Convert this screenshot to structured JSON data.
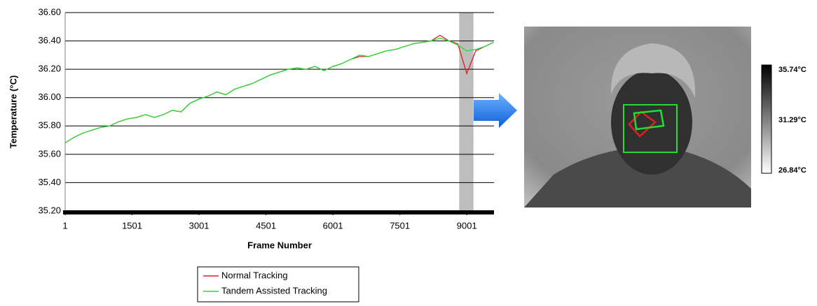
{
  "chart_data": {
    "type": "line",
    "y_label": "Temperature (°C)",
    "x_label": "Frame Number",
    "x": [
      1,
      200,
      400,
      600,
      800,
      1000,
      1200,
      1400,
      1600,
      1800,
      2000,
      2200,
      2400,
      2600,
      2800,
      3000,
      3200,
      3400,
      3600,
      3800,
      4000,
      4200,
      4400,
      4600,
      4800,
      5000,
      5200,
      5400,
      5600,
      5800,
      6000,
      6200,
      6400,
      6600,
      6800,
      7000,
      7200,
      7400,
      7600,
      7800,
      8000,
      8200,
      8400,
      8600,
      8800,
      9000,
      9200,
      9400,
      9600
    ],
    "series": [
      {
        "name": "Normal Tracking",
        "color": "#e02020",
        "values": [
          35.68,
          35.72,
          35.75,
          35.77,
          35.79,
          35.8,
          35.83,
          35.85,
          35.86,
          35.88,
          35.86,
          35.88,
          35.91,
          35.9,
          35.96,
          35.99,
          36.01,
          36.04,
          36.02,
          36.06,
          36.08,
          36.1,
          36.13,
          36.16,
          36.18,
          36.2,
          36.21,
          36.2,
          36.22,
          36.19,
          36.22,
          36.24,
          36.27,
          36.29,
          36.29,
          36.31,
          36.33,
          36.34,
          36.36,
          36.38,
          36.39,
          36.4,
          36.44,
          36.4,
          36.38,
          36.17,
          36.33,
          36.36,
          36.39
        ]
      },
      {
        "name": "Tandem Assisted Tracking",
        "color": "#22dd33",
        "values": [
          35.68,
          35.72,
          35.75,
          35.77,
          35.79,
          35.8,
          35.83,
          35.85,
          35.86,
          35.88,
          35.86,
          35.88,
          35.91,
          35.9,
          35.96,
          35.99,
          36.01,
          36.04,
          36.02,
          36.06,
          36.08,
          36.1,
          36.13,
          36.16,
          36.18,
          36.2,
          36.21,
          36.2,
          36.22,
          36.19,
          36.22,
          36.24,
          36.27,
          36.3,
          36.29,
          36.31,
          36.33,
          36.34,
          36.36,
          36.38,
          36.39,
          36.4,
          36.42,
          36.4,
          36.37,
          36.33,
          36.34,
          36.36,
          36.39
        ]
      }
    ],
    "xlim": [
      1,
      9610
    ],
    "xticks": [
      1,
      1501,
      3001,
      4501,
      6001,
      7501,
      9001
    ],
    "ylim": [
      35.2,
      36.6
    ],
    "yticks": [
      {
        "value": 35.2,
        "label": "35.20"
      },
      {
        "value": 35.4,
        "label": "35.40"
      },
      {
        "value": 35.6,
        "label": "35.60"
      },
      {
        "value": 35.8,
        "label": "35.80"
      },
      {
        "value": 36.0,
        "label": "36.00"
      },
      {
        "value": 36.2,
        "label": "36.20"
      },
      {
        "value": 36.4,
        "label": "36.40"
      },
      {
        "value": 36.6,
        "label": "36.60"
      }
    ],
    "grid": true,
    "highlight": [
      8830,
      9150
    ]
  },
  "thermal_image": {
    "colorbar_labels": [
      "35.74°C",
      "31.29°C",
      "26.84°C"
    ]
  }
}
